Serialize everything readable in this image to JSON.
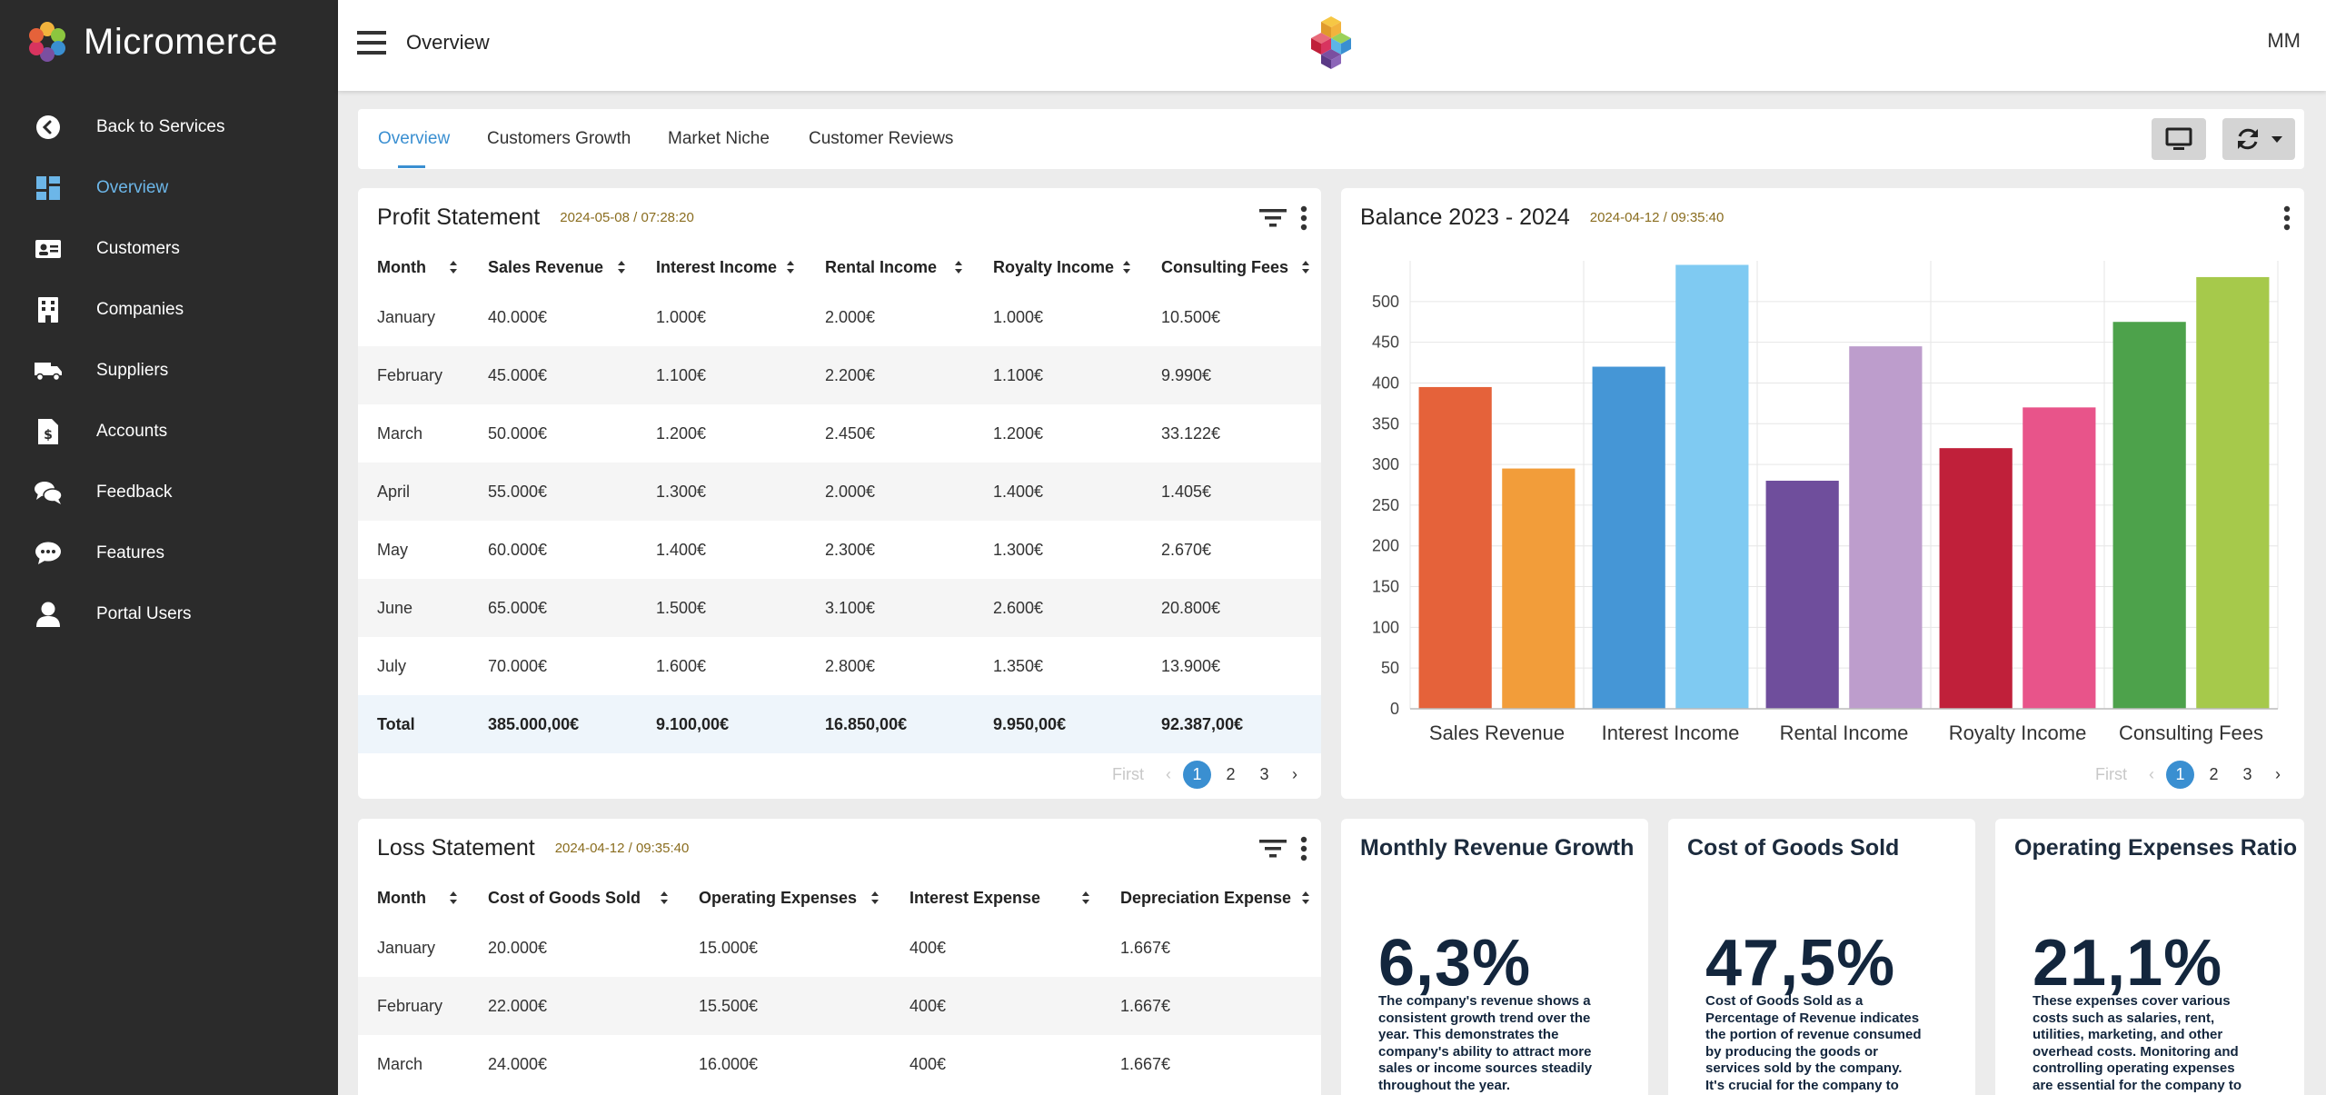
{
  "app": {
    "brand": "Micromerce",
    "page_title": "Overview",
    "user_initials": "MM"
  },
  "sidebar": {
    "items": [
      {
        "label": "Back to Services",
        "icon": "back-circle-icon"
      },
      {
        "label": "Overview",
        "icon": "dashboard-icon",
        "active": true
      },
      {
        "label": "Customers",
        "icon": "contact-card-icon"
      },
      {
        "label": "Companies",
        "icon": "building-icon"
      },
      {
        "label": "Suppliers",
        "icon": "truck-icon"
      },
      {
        "label": "Accounts",
        "icon": "invoice-icon"
      },
      {
        "label": "Feedback",
        "icon": "chat-bubbles-icon"
      },
      {
        "label": "Features",
        "icon": "speech-bubble-icon"
      },
      {
        "label": "Portal Users",
        "icon": "user-icon"
      }
    ]
  },
  "tabs": [
    "Overview",
    "Customers Growth",
    "Market Niche",
    "Customer Reviews"
  ],
  "profit": {
    "title": "Profit Statement",
    "timestamp": "2024-05-08 / 07:28:20",
    "columns": [
      "Month",
      "Sales Revenue",
      "Interest Income",
      "Rental Income",
      "Royalty Income",
      "Consulting Fees"
    ],
    "rows": [
      [
        "January",
        "40.000€",
        "1.000€",
        "2.000€",
        "1.000€",
        "10.500€"
      ],
      [
        "February",
        "45.000€",
        "1.100€",
        "2.200€",
        "1.100€",
        "9.990€"
      ],
      [
        "March",
        "50.000€",
        "1.200€",
        "2.450€",
        "1.200€",
        "33.122€"
      ],
      [
        "April",
        "55.000€",
        "1.300€",
        "2.000€",
        "1.400€",
        "1.405€"
      ],
      [
        "May",
        "60.000€",
        "1.400€",
        "2.300€",
        "1.300€",
        "2.670€"
      ],
      [
        "June",
        "65.000€",
        "1.500€",
        "3.100€",
        "2.600€",
        "20.800€"
      ],
      [
        "July",
        "70.000€",
        "1.600€",
        "2.800€",
        "1.350€",
        "13.900€"
      ]
    ],
    "total": [
      "Total",
      "385.000,00€",
      "9.100,00€",
      "16.850,00€",
      "9.950,00€",
      "92.387,00€"
    ],
    "pager": {
      "first": "First",
      "pages": [
        "1",
        "2",
        "3"
      ]
    }
  },
  "balance": {
    "title": "Balance 2023 - 2024",
    "timestamp": "2024-04-12 / 09:35:40",
    "pager": {
      "first": "First",
      "pages": [
        "1",
        "2",
        "3"
      ]
    }
  },
  "loss": {
    "title": "Loss Statement",
    "timestamp": "2024-04-12 / 09:35:40",
    "columns": [
      "Month",
      "Cost of Goods Sold",
      "Operating Expenses",
      "Interest Expense",
      "Depreciation Expense"
    ],
    "rows": [
      [
        "January",
        "20.000€",
        "15.000€",
        "400€",
        "1.667€"
      ],
      [
        "February",
        "22.000€",
        "15.500€",
        "400€",
        "1.667€"
      ],
      [
        "March",
        "24.000€",
        "16.000€",
        "400€",
        "1.667€"
      ]
    ]
  },
  "kpis": [
    {
      "title": "Monthly Revenue Growth",
      "value": "6,3%",
      "description": "The company's revenue shows a consistent growth trend over the year. This demonstrates the company's ability to attract more sales or income sources steadily throughout the year."
    },
    {
      "title": "Cost of Goods Sold",
      "value": "47,5%",
      "description": "Cost of Goods Sold as a Percentage of Revenue indicates the portion of revenue consumed by producing the goods or services sold by the company. It's crucial for the company to manage its COGS"
    },
    {
      "title": "Operating Expenses Ratio",
      "value": "21,1%",
      "description": "These expenses cover various costs such as salaries, rent, utilities, marketing, and other overhead costs. Monitoring and controlling operating expenses are essential for the company to"
    }
  ],
  "chart_data": {
    "type": "bar",
    "categories": [
      "Sales Revenue",
      "Interest Income",
      "Rental Income",
      "Royalty Income",
      "Consulting Fees"
    ],
    "series": [
      {
        "values": [
          395,
          420,
          280,
          320,
          475
        ]
      },
      {
        "values": [
          295,
          545,
          445,
          370,
          530
        ]
      }
    ],
    "colors": [
      [
        "#e5623a",
        "#f29d3a"
      ],
      [
        "#4596d6",
        "#7fcaf2"
      ],
      [
        "#6f4e9c",
        "#bd9dcc"
      ],
      [
        "#c0203a",
        "#e8548a"
      ],
      [
        "#4da24b",
        "#a6c94b"
      ]
    ],
    "yticks": [
      0,
      50,
      100,
      150,
      200,
      250,
      300,
      350,
      400,
      450,
      500
    ],
    "ylim": [
      0,
      550
    ],
    "grid": true
  }
}
